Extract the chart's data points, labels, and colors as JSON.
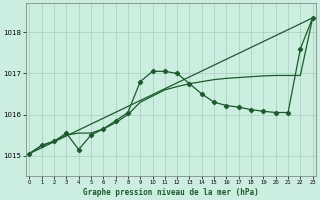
{
  "title": "Graphe pression niveau de la mer (hPa)",
  "bg_color": "#cceee0",
  "grid_color": "#aad4c0",
  "line_color": "#1a5c2a",
  "x_ticks": [
    0,
    1,
    2,
    3,
    4,
    5,
    6,
    7,
    8,
    9,
    10,
    11,
    12,
    13,
    14,
    15,
    16,
    17,
    18,
    19,
    20,
    21,
    22,
    23
  ],
  "y_ticks": [
    1015,
    1016,
    1017,
    1018
  ],
  "ylim": [
    1014.5,
    1018.7
  ],
  "xlim": [
    -0.3,
    23.3
  ],
  "series1_x": [
    0,
    23
  ],
  "series1_y": [
    1015.05,
    1018.35
  ],
  "series2_x": [
    0,
    1,
    2,
    3,
    4,
    5,
    6,
    7,
    8,
    9,
    10,
    11,
    12,
    13,
    14,
    15,
    16,
    17,
    18,
    19,
    20,
    21,
    22,
    23
  ],
  "series2_y": [
    1015.05,
    1015.25,
    1015.35,
    1015.55,
    1015.15,
    1015.5,
    1015.65,
    1015.85,
    1016.05,
    1016.8,
    1017.05,
    1017.05,
    1017.0,
    1016.75,
    1016.5,
    1016.3,
    1016.22,
    1016.18,
    1016.12,
    1016.08,
    1016.05,
    1016.05,
    1017.6,
    1018.35
  ],
  "series3_x": [
    0,
    1,
    2,
    3,
    4,
    5,
    6,
    7,
    8,
    9,
    10,
    11,
    12,
    13,
    14,
    15,
    16,
    17,
    18,
    19,
    20,
    21,
    22,
    23
  ],
  "series3_y": [
    1015.05,
    1015.25,
    1015.35,
    1015.5,
    1015.55,
    1015.55,
    1015.65,
    1015.8,
    1016.0,
    1016.3,
    1016.45,
    1016.6,
    1016.68,
    1016.75,
    1016.8,
    1016.85,
    1016.88,
    1016.9,
    1016.92,
    1016.94,
    1016.95,
    1016.95,
    1016.95,
    1018.35
  ]
}
